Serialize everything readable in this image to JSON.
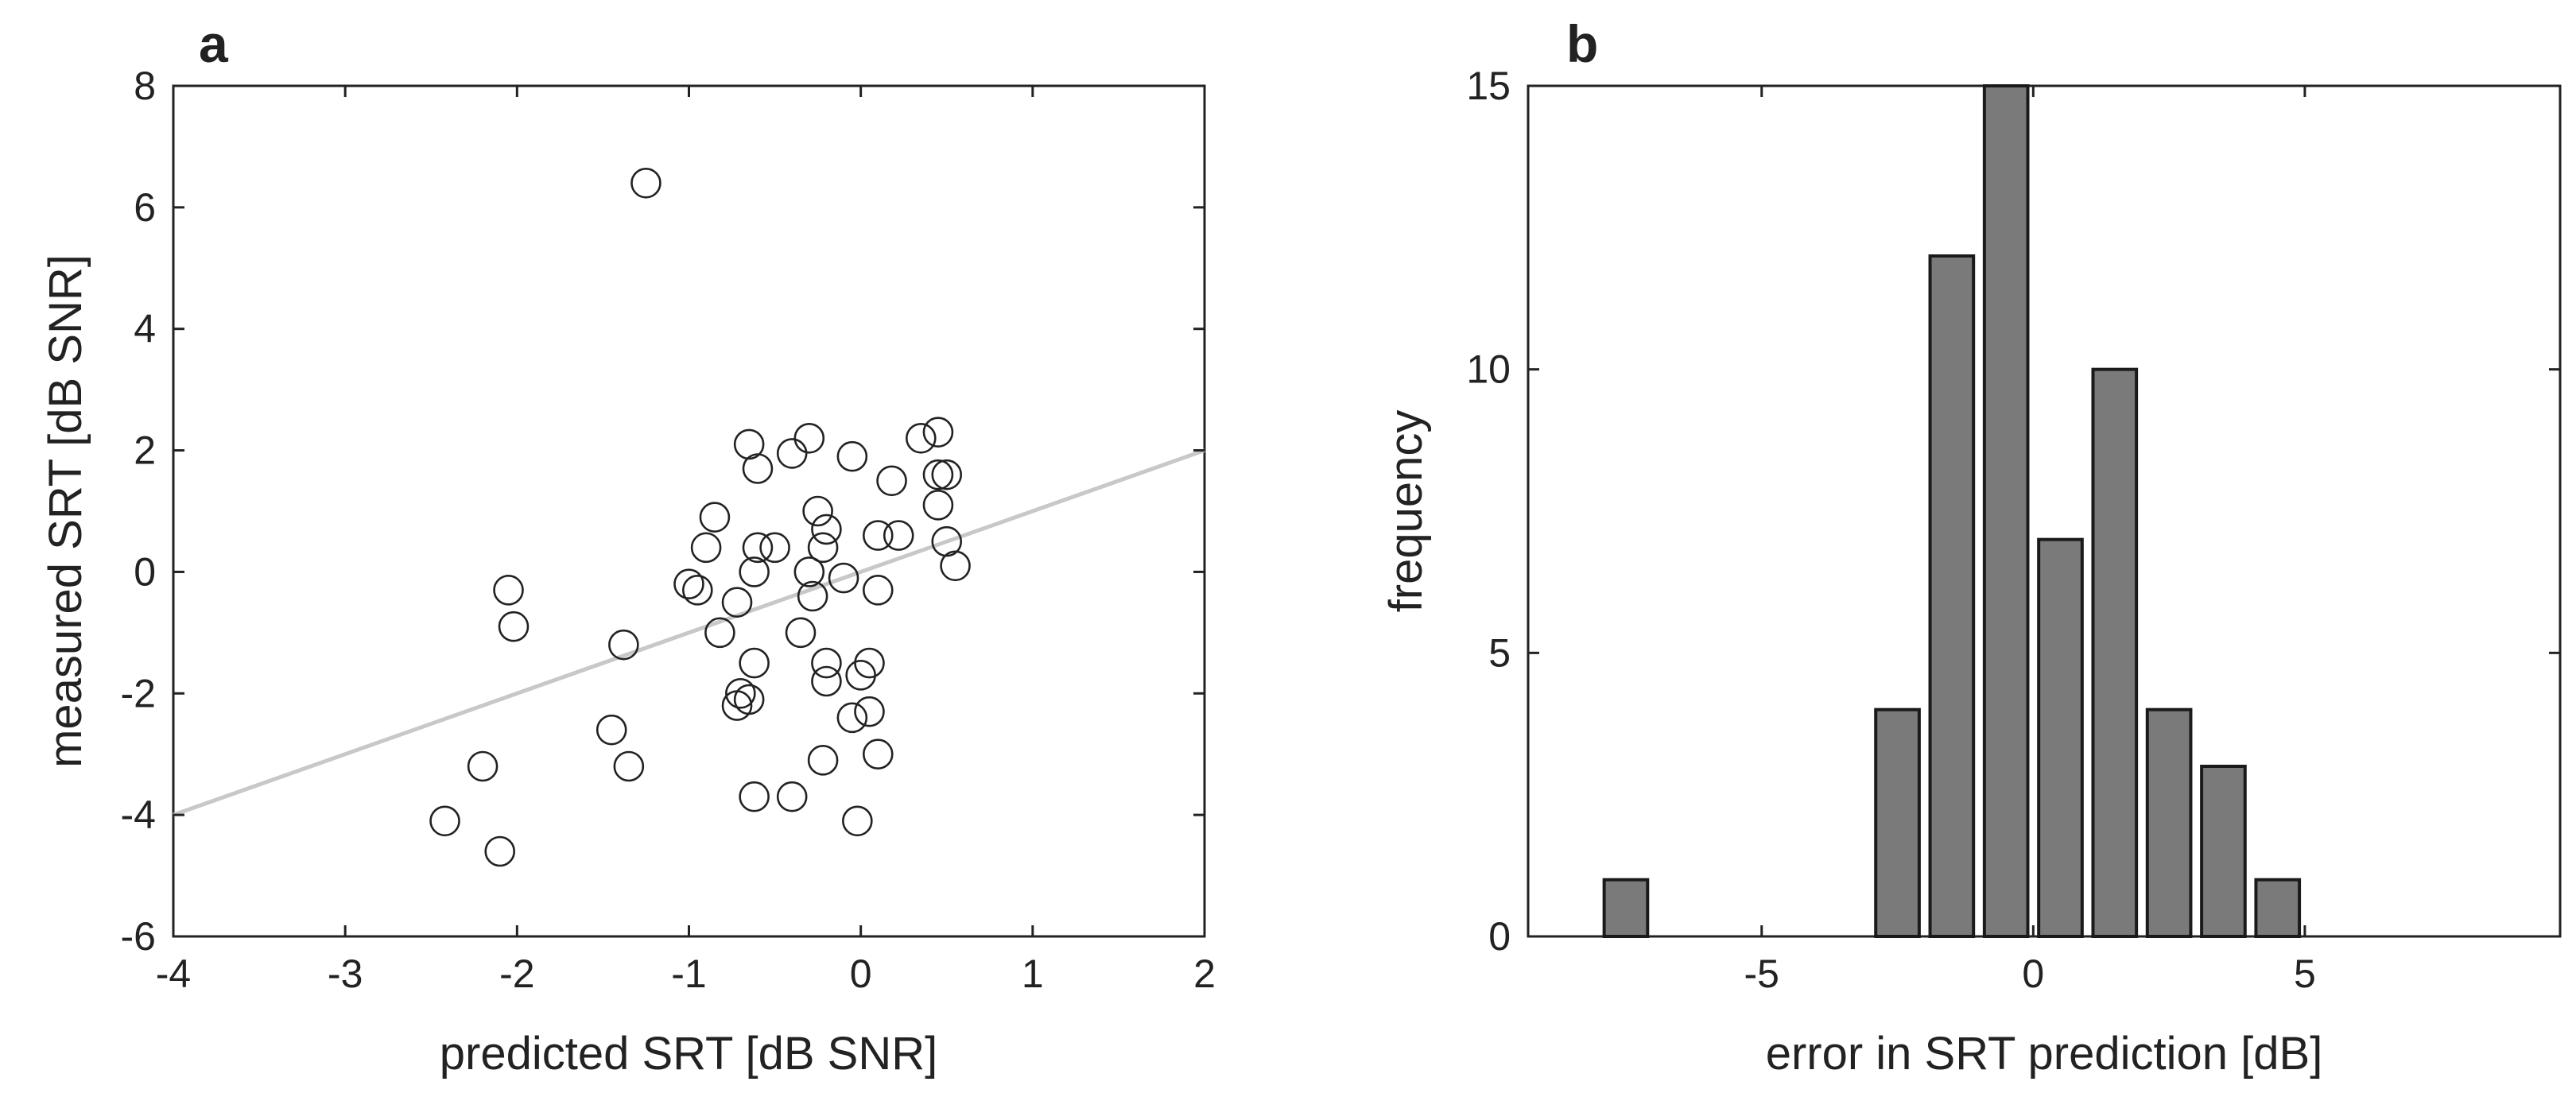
{
  "colors": {
    "axis": "#222222",
    "marker_stroke": "#222222",
    "fit_line": "#c8c8c8",
    "bar_fill": "#7a7a7a",
    "bar_stroke": "#1a1a1a"
  },
  "chart_data": [
    {
      "panel_label": "a",
      "type": "scatter",
      "xlabel": "predicted SRT [dB SNR]",
      "ylabel": "measured SRT [dB SNR]",
      "xlim": [
        -4,
        2
      ],
      "ylim": [
        -6,
        8
      ],
      "xticks": [
        -4,
        -3,
        -2,
        -1,
        0,
        1,
        2
      ],
      "yticks": [
        -6,
        -4,
        -2,
        0,
        2,
        4,
        6,
        8
      ],
      "grid": false,
      "marker": "open-circle",
      "series": [
        {
          "points": [
            [
              -1.25,
              6.4
            ],
            [
              -0.65,
              2.1
            ],
            [
              -0.3,
              2.2
            ],
            [
              -0.4,
              1.95
            ],
            [
              -0.6,
              1.7
            ],
            [
              -0.05,
              1.9
            ],
            [
              0.35,
              2.2
            ],
            [
              0.45,
              2.3
            ],
            [
              0.45,
              1.6
            ],
            [
              0.5,
              1.6
            ],
            [
              0.45,
              1.1
            ],
            [
              0.5,
              0.5
            ],
            [
              0.55,
              0.1
            ],
            [
              0.18,
              1.5
            ],
            [
              0.1,
              0.6
            ],
            [
              0.22,
              0.6
            ],
            [
              -0.85,
              0.9
            ],
            [
              -0.9,
              0.4
            ],
            [
              -0.6,
              0.4
            ],
            [
              -0.5,
              0.4
            ],
            [
              -0.25,
              1.0
            ],
            [
              -0.2,
              0.7
            ],
            [
              -0.22,
              0.4
            ],
            [
              -0.62,
              0.0
            ],
            [
              -0.3,
              0.0
            ],
            [
              -0.1,
              -0.1
            ],
            [
              0.1,
              -0.3
            ],
            [
              -1.0,
              -0.2
            ],
            [
              -0.95,
              -0.3
            ],
            [
              -0.72,
              -0.5
            ],
            [
              -0.28,
              -0.4
            ],
            [
              -0.82,
              -1.0
            ],
            [
              -0.35,
              -1.0
            ],
            [
              -0.62,
              -1.5
            ],
            [
              -0.2,
              -1.5
            ],
            [
              -0.2,
              -1.8
            ],
            [
              0.05,
              -1.5
            ],
            [
              0.0,
              -1.7
            ],
            [
              -0.7,
              -2.0
            ],
            [
              -0.72,
              -2.2
            ],
            [
              -0.65,
              -2.1
            ],
            [
              -0.05,
              -2.4
            ],
            [
              0.05,
              -2.3
            ],
            [
              0.1,
              -3.0
            ],
            [
              -0.22,
              -3.1
            ],
            [
              -1.38,
              -1.2
            ],
            [
              -1.45,
              -2.6
            ],
            [
              -1.35,
              -3.2
            ],
            [
              -2.05,
              -0.3
            ],
            [
              -2.02,
              -0.9
            ],
            [
              -2.2,
              -3.2
            ],
            [
              -2.42,
              -4.1
            ],
            [
              -2.1,
              -4.6
            ],
            [
              -0.62,
              -3.7
            ],
            [
              -0.4,
              -3.7
            ],
            [
              -0.02,
              -4.1
            ]
          ]
        }
      ],
      "fit_line": {
        "x": [
          -4,
          2
        ],
        "y": [
          -4,
          2
        ]
      }
    },
    {
      "panel_label": "b",
      "type": "bar",
      "xlabel": "error in SRT prediction [dB]",
      "ylabel": "frequency",
      "xlim": [
        -9.3,
        9.7
      ],
      "ylim": [
        0,
        15
      ],
      "xticks": [
        -5,
        0,
        5
      ],
      "yticks": [
        0,
        5,
        10,
        15
      ],
      "grid": false,
      "bin_width": 1,
      "bar_fraction": 0.8,
      "bins": [
        {
          "center": -7.5,
          "count": 1
        },
        {
          "center": -2.5,
          "count": 4
        },
        {
          "center": -1.5,
          "count": 12
        },
        {
          "center": -0.5,
          "count": 15
        },
        {
          "center": 0.5,
          "count": 7
        },
        {
          "center": 1.5,
          "count": 10
        },
        {
          "center": 2.5,
          "count": 4
        },
        {
          "center": 3.5,
          "count": 3
        },
        {
          "center": 4.5,
          "count": 1
        }
      ]
    }
  ]
}
